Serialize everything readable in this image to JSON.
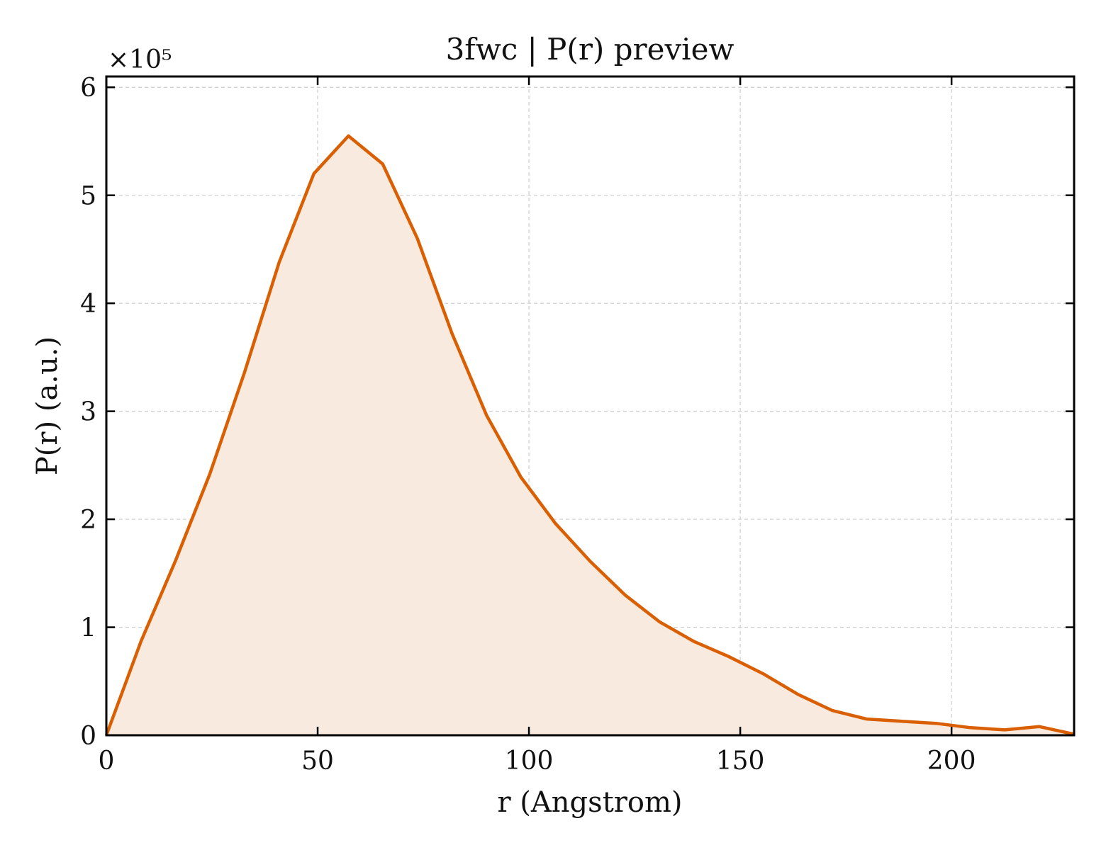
{
  "chart_data": {
    "type": "area",
    "title": "3fwc | P(r) preview",
    "xlabel": "r (Angstrom)",
    "ylabel": "P(r) (a.u.)",
    "y_scale_label": "×10⁵",
    "xlim": [
      0,
      229
    ],
    "ylim": [
      0,
      6.1
    ],
    "y_multiplier": 100000,
    "x_ticks": [
      0,
      50,
      100,
      150,
      200
    ],
    "y_ticks": [
      0,
      1,
      2,
      3,
      4,
      5,
      6
    ],
    "grid": true,
    "colors": {
      "line": "#d95f02",
      "fill": "#f9eadf",
      "grid": "#cccccc"
    },
    "series": [
      {
        "x": [
          0,
          8.2,
          16.4,
          24.5,
          32.7,
          40.9,
          49.1,
          57.3,
          65.4,
          73.6,
          81.8,
          90.0,
          98.1,
          106.3,
          114.5,
          122.7,
          130.9,
          139.0,
          147.2,
          155.4,
          163.6,
          171.7,
          179.9,
          188.1,
          196.3,
          204.5,
          212.6,
          220.8,
          229.0
        ],
        "y": [
          0,
          0.87,
          1.62,
          2.42,
          3.36,
          4.38,
          5.2,
          5.55,
          5.29,
          4.6,
          3.72,
          2.96,
          2.39,
          1.96,
          1.61,
          1.3,
          1.05,
          0.87,
          0.73,
          0.57,
          0.38,
          0.23,
          0.15,
          0.13,
          0.11,
          0.07,
          0.05,
          0.08,
          0.01
        ]
      }
    ]
  }
}
